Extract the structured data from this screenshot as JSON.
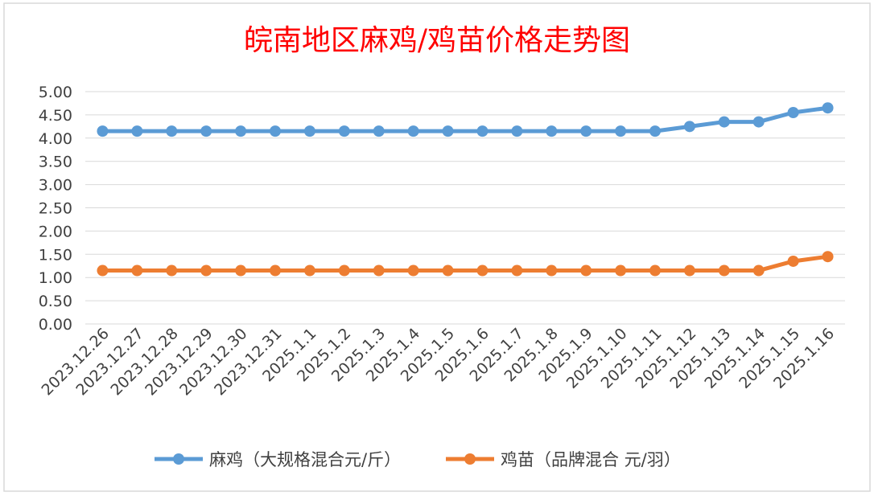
{
  "chart_data": {
    "type": "line",
    "title": "皖南地区麻鸡/鸡苗价格走势图",
    "categories": [
      "2023.12.26",
      "2023.12.27",
      "2023.12.28",
      "2023.12.29",
      "2023.12.30",
      "2023.12.31",
      "2025.1.1",
      "2025.1.2",
      "2025.1.3",
      "2025.1.4",
      "2025.1.5",
      "2025.1.6",
      "2025.1.7",
      "2025.1.8",
      "2025.1.9",
      "2025.1.10",
      "2025.1.11",
      "2025.1.12",
      "2025.1.13",
      "2025.1.14",
      "2025.1.15",
      "2025.1.16"
    ],
    "y_ticks": [
      "0.00",
      "0.50",
      "1.00",
      "1.50",
      "2.00",
      "2.50",
      "3.00",
      "3.50",
      "4.00",
      "4.50",
      "5.00"
    ],
    "ylim": [
      0,
      5
    ],
    "grid": true,
    "legend_position": "bottom",
    "series": [
      {
        "name": "麻鸡（大规格混合元/斤）",
        "color": "#5b9bd5",
        "values": [
          4.15,
          4.15,
          4.15,
          4.15,
          4.15,
          4.15,
          4.15,
          4.15,
          4.15,
          4.15,
          4.15,
          4.15,
          4.15,
          4.15,
          4.15,
          4.15,
          4.15,
          4.25,
          4.35,
          4.35,
          4.55,
          4.65
        ]
      },
      {
        "name": "鸡苗（品牌混合 元/羽）",
        "color": "#ed7d31",
        "values": [
          1.15,
          1.15,
          1.15,
          1.15,
          1.15,
          1.15,
          1.15,
          1.15,
          1.15,
          1.15,
          1.15,
          1.15,
          1.15,
          1.15,
          1.15,
          1.15,
          1.15,
          1.15,
          1.15,
          1.15,
          1.35,
          1.45
        ]
      }
    ]
  }
}
